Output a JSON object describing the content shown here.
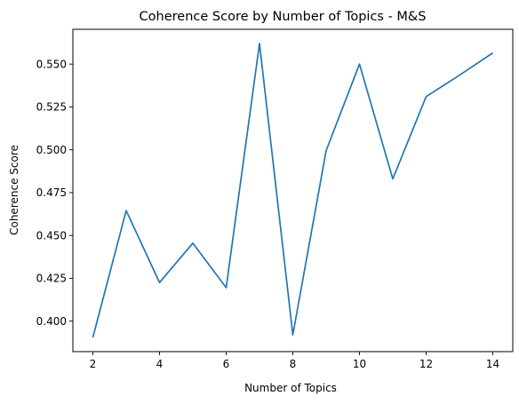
{
  "chart_data": {
    "type": "line",
    "title": "Coherence Score by Number of Topics - M&S",
    "xlabel": "Number of Topics",
    "ylabel": "Coherence Score",
    "x": [
      2,
      3,
      4,
      5,
      6,
      7,
      8,
      9,
      10,
      11,
      12,
      13,
      14
    ],
    "series": [
      {
        "values": [
          0.3905,
          0.4645,
          0.4225,
          0.4455,
          0.4195,
          0.562,
          0.392,
          0.4995,
          0.55,
          0.483,
          0.531,
          0.5435,
          0.5565
        ],
        "color": "#1f77b4"
      }
    ],
    "xlim": [
      1.4,
      14.6
    ],
    "ylim": [
      0.3822,
      0.5703
    ],
    "xticks": [
      2,
      4,
      6,
      8,
      10,
      12,
      14
    ],
    "xtick_labels": [
      "2",
      "4",
      "6",
      "8",
      "10",
      "12",
      "14"
    ],
    "yticks": [
      0.4,
      0.425,
      0.45,
      0.475,
      0.5,
      0.525,
      0.55
    ],
    "ytick_labels": [
      "0.400",
      "0.425",
      "0.450",
      "0.475",
      "0.500",
      "0.525",
      "0.550"
    ],
    "grid": false,
    "legend": false
  }
}
